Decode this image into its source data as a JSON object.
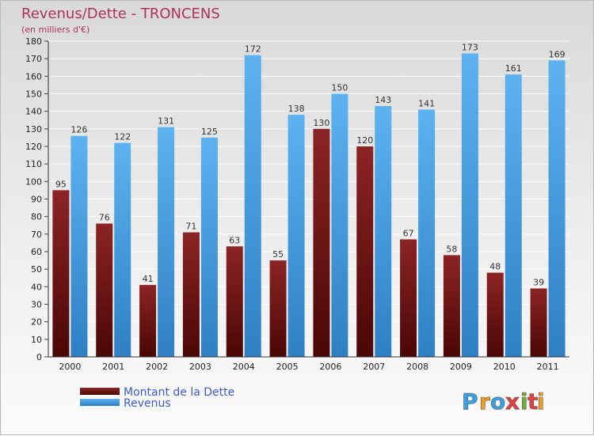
{
  "chart_data": {
    "type": "bar",
    "title": "Revenus/Dette - TRONCENS",
    "subtitle": "(en milliers d'€)",
    "categories": [
      "2000",
      "2001",
      "2002",
      "2003",
      "2004",
      "2005",
      "2006",
      "2007",
      "2008",
      "2009",
      "2010",
      "2011"
    ],
    "series": [
      {
        "name": "Montant de la Dette",
        "values": [
          95,
          76,
          41,
          71,
          63,
          55,
          130,
          120,
          67,
          58,
          48,
          39
        ],
        "color": "#7a1a1a"
      },
      {
        "name": "Revenus",
        "values": [
          126,
          122,
          131,
          125,
          172,
          138,
          150,
          143,
          141,
          173,
          161,
          169
        ],
        "color": "#4aa3e8"
      }
    ],
    "ylim": [
      0,
      180
    ],
    "ytick_step": 10,
    "grid": true,
    "xlabel": "",
    "ylabel": "",
    "legend_position": "bottom-left"
  },
  "logo": {
    "letters": [
      "P",
      "r",
      "o",
      "x",
      "i",
      "t",
      "i"
    ],
    "colors": [
      "#3aa0e0",
      "#f0a020",
      "#3aa0e0",
      "#e04040",
      "#70b030",
      "#e04040",
      "#f0a020"
    ]
  }
}
